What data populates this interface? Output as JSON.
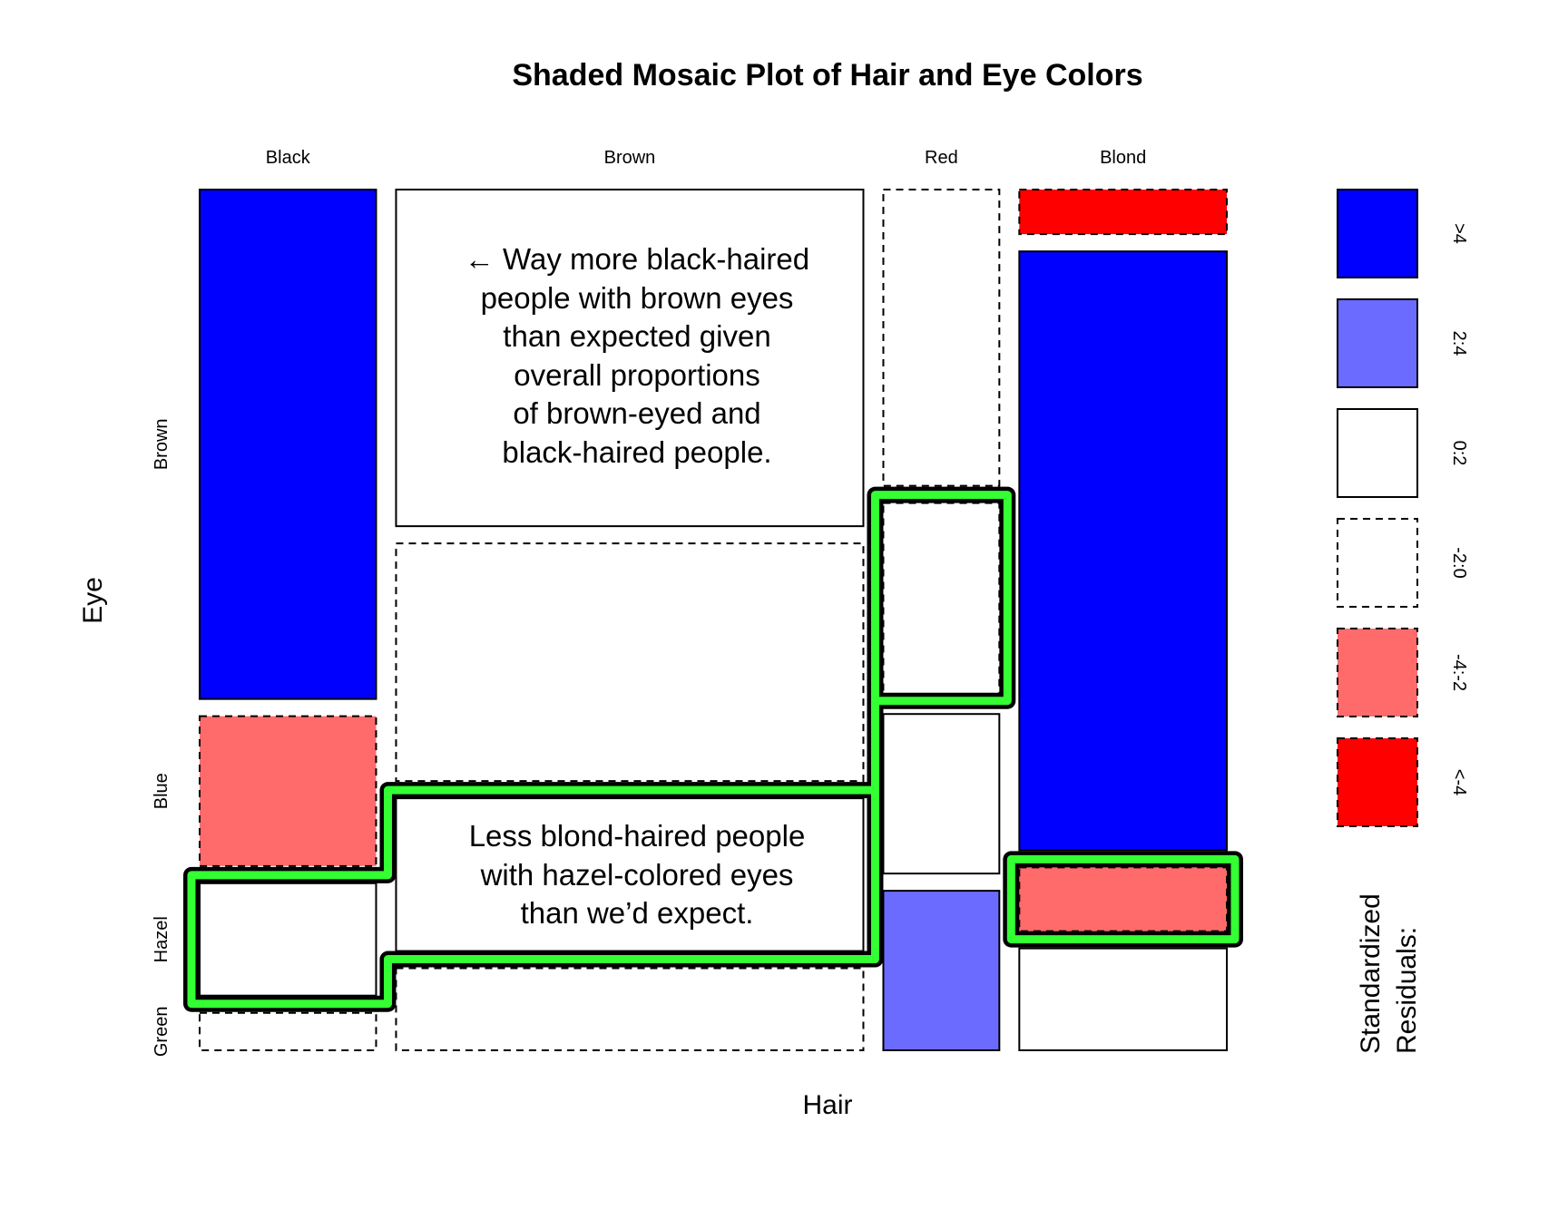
{
  "chart_data": {
    "type": "mosaic",
    "title": "Shaded Mosaic Plot of Hair and Eye Colors",
    "xlabel": "Hair",
    "ylabel": "Eye",
    "hair": [
      "Black",
      "Brown",
      "Red",
      "Blond"
    ],
    "hair_totals": [
      108,
      286,
      71,
      127
    ],
    "eye": [
      "Brown",
      "Blue",
      "Hazel",
      "Green"
    ],
    "counts": [
      [
        68,
        20,
        15,
        5
      ],
      [
        119,
        84,
        54,
        29
      ],
      [
        26,
        17,
        14,
        14
      ],
      [
        7,
        94,
        10,
        16
      ]
    ],
    "residual_class": [
      [
        ">4",
        "-4:-2",
        "0:2",
        "-2:0"
      ],
      [
        "0:2",
        "-2:0",
        "0:2",
        "-2:0"
      ],
      [
        "-2:0",
        "-2:0",
        "0:2",
        "2:4"
      ],
      [
        "<-4",
        ">4",
        "-4:-2",
        "0:2"
      ]
    ],
    "legend": {
      "title_lines": [
        "Standardized",
        "Residuals:"
      ],
      "classes": [
        {
          "label": ">4",
          "color": "#0000ff",
          "dashed": false
        },
        {
          "label": "2:4",
          "color": "#6b6bff",
          "dashed": false
        },
        {
          "label": "0:2",
          "color": "#ffffff",
          "dashed": false
        },
        {
          "label": "-2:0",
          "color": "#ffffff",
          "dashed": true
        },
        {
          "label": "-4:-2",
          "color": "#ff6b6b",
          "dashed": true
        },
        {
          "label": "<-4",
          "color": "#ff0000",
          "dashed": true
        }
      ]
    },
    "annotations": [
      {
        "lines": [
          "← Way more black-haired",
          "people with brown eyes",
          "than expected given",
          "overall proportions",
          "of brown-eyed and",
          "black-haired people."
        ]
      },
      {
        "lines": [
          "Less blond-haired people",
          "with hazel-colored eyes",
          "than we’d expect."
        ]
      }
    ],
    "highlight_color": "#33ff33"
  }
}
